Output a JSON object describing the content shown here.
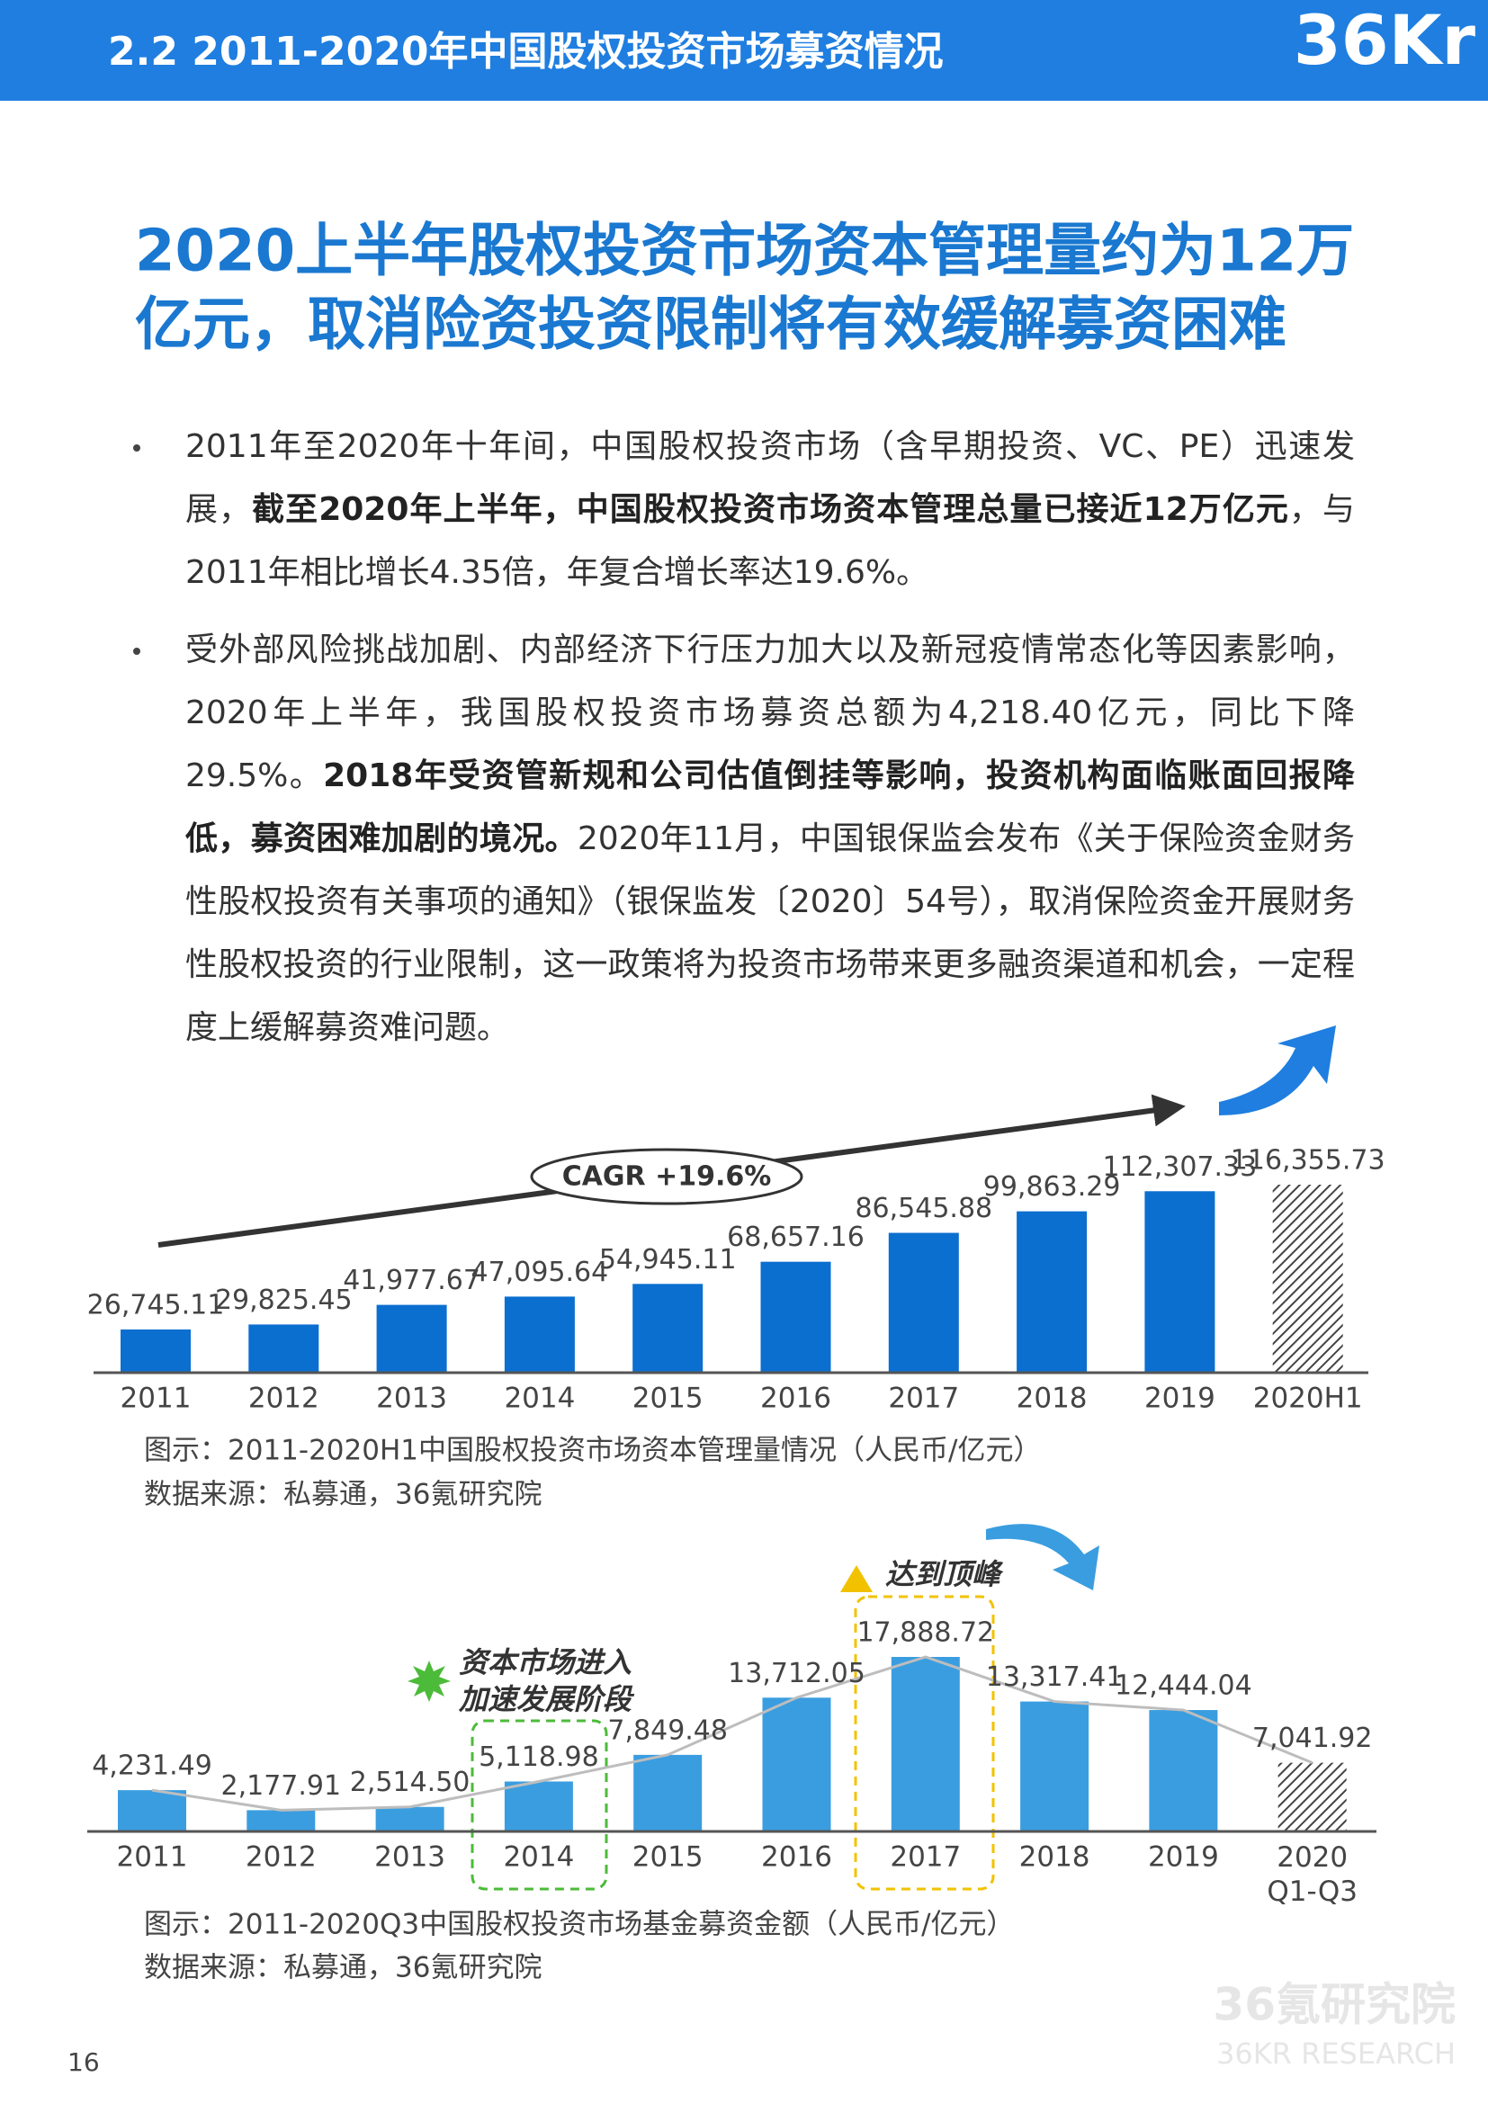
{
  "header": {
    "title": "2.2 2011-2020年中国股权投资市场募资情况",
    "logo": "36Kr"
  },
  "headline": [
    "2020上半年股权投资市场资本管理量约为12万",
    "亿元，取消险资投资限制将有效缓解募资困难"
  ],
  "bullets": [
    [
      {
        "text": "2011年至2020年十年间，中国股权投资市场（含早期投资、VC、PE）迅速发展，",
        "bold": false
      },
      {
        "text": "截至2020年上半年，中国股权投资市场资本管理总量已接近12万亿元",
        "bold": true
      },
      {
        "text": "，与2011年相比增长4.35倍，年复合增长率达19.6%。",
        "bold": false
      }
    ],
    [
      {
        "text": "受外部风险挑战加剧、内部经济下行压力加大以及新冠疫情常态化等因素影响，2020年上半年，我国股权投资市场募资总额为4,218.40亿元，同比下降29.5%。",
        "bold": false
      },
      {
        "text": "2018年受资管新规和公司估值倒挂等影响，投资机构面临账面回报降低，募资困难加剧的境况。",
        "bold": true
      },
      {
        "text": "2020年11月，中国银保监会发布《关于保险资金财务性股权投资有关事项的通知》（银保监发〔2020〕54号），取消保险资金开展财务性股权投资的行业限制，这一政策将为投资市场带来更多融资渠道和机会，一定程度上缓解募资难问题。",
        "bold": false
      }
    ]
  ],
  "chart_data": [
    {
      "type": "bar",
      "color": "#0b6fd0",
      "last_bar_hatched": true,
      "categories": [
        "2011",
        "2012",
        "2013",
        "2014",
        "2015",
        "2016",
        "2017",
        "2018",
        "2019",
        "2020H1"
      ],
      "values": [
        26745.11,
        29825.45,
        41977.67,
        47095.64,
        54945.11,
        68657.16,
        86545.88,
        99863.29,
        112307.33,
        116355.73
      ],
      "value_labels": [
        "26,745.11",
        "29,825.45",
        "41,977.67",
        "47,095.64",
        "54,945.11",
        "68,657.16",
        "86,545.88",
        "99,863.29",
        "112,307.33",
        "116,355.73"
      ],
      "annotation": "CAGR +19.6%",
      "caption": "图示：2011-2020H1中国股权投资市场资本管理量情况（人民币/亿元）",
      "source": "数据来源：私募通，36氪研究院"
    },
    {
      "type": "bar",
      "color": "#3a9de0",
      "line_color": "#bdbdbd",
      "last_bar_hatched": true,
      "categories": [
        "2011",
        "2012",
        "2013",
        "2014",
        "2015",
        "2016",
        "2017",
        "2018",
        "2019",
        "2020 Q1-Q3"
      ],
      "values": [
        4231.49,
        2177.91,
        2514.5,
        5118.98,
        7849.48,
        13712.05,
        17888.72,
        13317.41,
        12444.04,
        7041.92
      ],
      "value_labels": [
        "4,231.49",
        "2,177.91",
        "2,514.50",
        "5,118.98",
        "7,849.48",
        "13,712.05",
        "17,888.72",
        "13,317.41",
        "12,444.04",
        "7,041.92"
      ],
      "annotations": {
        "stage": [
          "资本市场进入",
          "加速发展阶段"
        ],
        "peak": "达到顶峰"
      },
      "caption": "图示：2011-2020Q3中国股权投资市场基金募资金额（人民币/亿元）",
      "source": "数据来源：私募通，36氪研究院"
    }
  ],
  "footer": {
    "page": "16",
    "watermark": [
      "36氪研究院",
      "36KR RESEARCH"
    ]
  }
}
